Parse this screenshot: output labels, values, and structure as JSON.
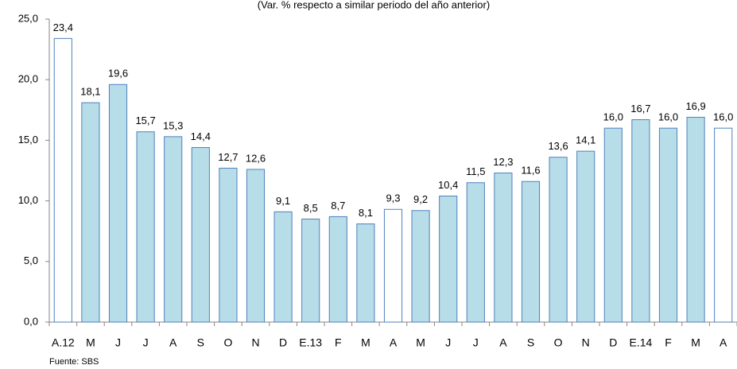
{
  "chart_data": {
    "type": "bar",
    "title": "(Var. % respecto a similar periodo del año anterior)",
    "source": "Fuente: SBS",
    "categories": [
      "A.12",
      "M",
      "J",
      "J",
      "A",
      "S",
      "O",
      "N",
      "D",
      "E.13",
      "F",
      "M",
      "A",
      "M",
      "J",
      "J",
      "A",
      "S",
      "O",
      "N",
      "D",
      "E.14",
      "F",
      "M",
      "A"
    ],
    "values": [
      23.4,
      18.1,
      19.6,
      15.7,
      15.3,
      14.4,
      12.7,
      12.6,
      9.1,
      8.5,
      8.7,
      8.1,
      9.3,
      9.2,
      10.4,
      11.5,
      12.3,
      11.6,
      13.6,
      14.1,
      16.0,
      16.7,
      16.0,
      16.9,
      16.0
    ],
    "value_labels": [
      "23,4",
      "18,1",
      "19,6",
      "15,7",
      "15,3",
      "14,4",
      "12,7",
      "12,6",
      "9,1",
      "8,5",
      "8,7",
      "8,1",
      "9,3",
      "9,2",
      "10,4",
      "11,5",
      "12,3",
      "11,6",
      "13,6",
      "14,1",
      "16,0",
      "16,7",
      "16,0",
      "16,9",
      "16,0"
    ],
    "colors": [
      "#ffffff",
      "#b7dde8",
      "#b7dde8",
      "#b7dde8",
      "#b7dde8",
      "#b7dde8",
      "#b7dde8",
      "#b7dde8",
      "#b7dde8",
      "#b7dde8",
      "#b7dde8",
      "#b7dde8",
      "#ffffff",
      "#b7dde8",
      "#b7dde8",
      "#b7dde8",
      "#b7dde8",
      "#b7dde8",
      "#b7dde8",
      "#b7dde8",
      "#b7dde8",
      "#b7dde8",
      "#b7dde8",
      "#b7dde8",
      "#ffffff"
    ],
    "edge_color": "#4f81bd",
    "ylim": [
      0,
      25
    ],
    "yticks": [
      {
        "value": 0,
        "label": "0,0"
      },
      {
        "value": 5,
        "label": "5,0"
      },
      {
        "value": 10,
        "label": "10,0"
      },
      {
        "value": 15,
        "label": "15,0"
      },
      {
        "value": 20,
        "label": "20,0"
      },
      {
        "value": 25,
        "label": "25,0"
      }
    ],
    "grid": false
  }
}
